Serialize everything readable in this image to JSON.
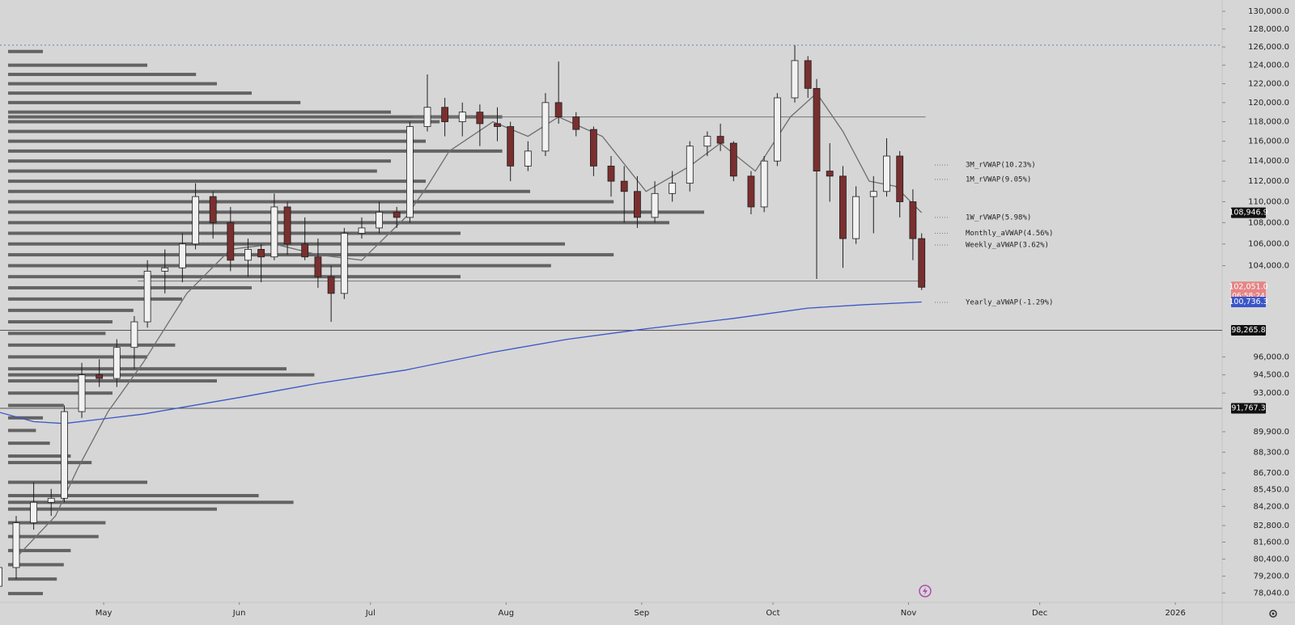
{
  "chart_data": {
    "type": "candlestick",
    "log_scale": true,
    "xlim": [
      97.3,
      376.7
    ],
    "xticks": [
      {
        "value": 121,
        "label": "May"
      },
      {
        "value": 152,
        "label": "Jun"
      },
      {
        "value": 182,
        "label": "Jul"
      },
      {
        "value": 213,
        "label": "Aug"
      },
      {
        "value": 244,
        "label": "Sep"
      },
      {
        "value": 274,
        "label": "Oct"
      },
      {
        "value": 305,
        "label": "Nov"
      },
      {
        "value": 335,
        "label": "Dec"
      },
      {
        "value": 366,
        "label": "2026"
      }
    ],
    "ylim": [
      77400,
      131300
    ],
    "yticks": [
      {
        "value": 130000,
        "label": "130,000.0"
      },
      {
        "value": 128000,
        "label": "128,000.0"
      },
      {
        "value": 126000,
        "label": "126,000.0"
      },
      {
        "value": 124000,
        "label": "124,000.0"
      },
      {
        "value": 122000,
        "label": "122,000.0"
      },
      {
        "value": 120000,
        "label": "120,000.0"
      },
      {
        "value": 118000,
        "label": "118,000.0"
      },
      {
        "value": 116000,
        "label": "116,000.0"
      },
      {
        "value": 114000,
        "label": "114,000.0"
      },
      {
        "value": 112000,
        "label": "112,000.0"
      },
      {
        "value": 110000,
        "label": "110,000.0"
      },
      {
        "value": 108000,
        "label": "108,000.0"
      },
      {
        "value": 106000,
        "label": "106,000.0"
      },
      {
        "value": 104000,
        "label": "104,000.0"
      },
      {
        "value": 96000,
        "label": "96,000.0"
      },
      {
        "value": 94500,
        "label": "94,500.0"
      },
      {
        "value": 93000,
        "label": "93,000.0"
      },
      {
        "value": 89900,
        "label": "89,900.0"
      },
      {
        "value": 88300,
        "label": "88,300.0"
      },
      {
        "value": 86700,
        "label": "86,700.0"
      },
      {
        "value": 85450,
        "label": "85,450.0"
      },
      {
        "value": 84200,
        "label": "84,200.0"
      },
      {
        "value": 82800,
        "label": "82,800.0"
      },
      {
        "value": 81600,
        "label": "81,600.0"
      },
      {
        "value": 80400,
        "label": "80,400.0"
      },
      {
        "value": 79200,
        "label": "79,200.0"
      },
      {
        "value": 78040,
        "label": "78,040.0"
      }
    ],
    "up_color": "#f2f2f2",
    "down_color": "#7a2f2f",
    "x": [
      97,
      101,
      105,
      109,
      112,
      116,
      120,
      124,
      128,
      131,
      135,
      139,
      142,
      146,
      150,
      154,
      157,
      160,
      163,
      167,
      170,
      173,
      176,
      180,
      184,
      188,
      191,
      195,
      199,
      203,
      207,
      211,
      214,
      218,
      222,
      225,
      229,
      233,
      237,
      240,
      243,
      247,
      251,
      255,
      259,
      262,
      265,
      269,
      272,
      275,
      279,
      282,
      284,
      287,
      290,
      293,
      297,
      300,
      303,
      306,
      308
    ],
    "open": [
      78500,
      79800,
      83000,
      84500,
      84800,
      91500,
      94500,
      94200,
      96800,
      99000,
      103500,
      103800,
      106000,
      110500,
      108000,
      104500,
      105500,
      104800,
      109500,
      106000,
      104800,
      103000,
      101500,
      107000,
      107500,
      109000,
      108500,
      117500,
      119500,
      118000,
      119000,
      117800,
      117500,
      113500,
      115000,
      120000,
      118500,
      117200,
      113500,
      112000,
      111000,
      108500,
      110800,
      111800,
      115500,
      116500,
      115800,
      112500,
      109500,
      114000,
      120500,
      124500,
      121500,
      113000,
      112500,
      106500,
      110500,
      111000,
      114500,
      110000,
      106500
    ],
    "high": [
      80000,
      83500,
      86000,
      85500,
      92000,
      95500,
      95800,
      97500,
      99500,
      104500,
      105500,
      107000,
      111800,
      111000,
      109500,
      106500,
      106000,
      110800,
      110000,
      108500,
      106500,
      104000,
      107500,
      108500,
      110000,
      109500,
      118000,
      123000,
      120500,
      120000,
      119800,
      119500,
      118000,
      116000,
      121000,
      124400,
      119000,
      117500,
      114500,
      113500,
      112500,
      112000,
      113000,
      116000,
      117000,
      117800,
      116000,
      113000,
      114500,
      121000,
      126200,
      125000,
      122500,
      115800,
      113500,
      111500,
      112500,
      116300,
      115000,
      111200,
      107000
    ],
    "low": [
      77500,
      79000,
      82500,
      83500,
      84500,
      91000,
      93500,
      93500,
      95000,
      98500,
      101500,
      102500,
      105500,
      106500,
      103500,
      103000,
      102500,
      104500,
      105000,
      104500,
      102000,
      99000,
      101000,
      106500,
      107000,
      107500,
      108000,
      117000,
      116500,
      116500,
      115500,
      116000,
      112000,
      113000,
      114500,
      117800,
      116500,
      112500,
      110500,
      108000,
      107500,
      108000,
      110000,
      111000,
      114500,
      115000,
      112000,
      108800,
      109000,
      113500,
      120000,
      120500,
      102800,
      110000,
      103800,
      106000,
      107000,
      110500,
      108500,
      104500,
      101800
    ],
    "close": [
      79800,
      83000,
      84500,
      84800,
      91500,
      94500,
      94200,
      96800,
      99000,
      103500,
      103800,
      106000,
      110500,
      108000,
      104500,
      105500,
      104800,
      109500,
      106000,
      104800,
      103000,
      101500,
      107000,
      107500,
      109000,
      108500,
      117500,
      119500,
      118000,
      119000,
      117800,
      117500,
      113500,
      115000,
      120000,
      118500,
      117200,
      113500,
      112000,
      111000,
      108500,
      110800,
      111800,
      115500,
      116500,
      115800,
      112500,
      109500,
      114000,
      120500,
      124500,
      121500,
      113000,
      112500,
      106500,
      110500,
      111000,
      114500,
      110000,
      106500,
      102051
    ],
    "overlays": [
      {
        "color": "#6e6e6e",
        "x": [
          101,
          110,
          115,
          122,
          130,
          140,
          150,
          160,
          170,
          180,
          190,
          195,
          200,
          210,
          218,
          225,
          235,
          245,
          255,
          262,
          270,
          278,
          284,
          290,
          296,
          302,
          308
        ],
        "values": [
          80500,
          83500,
          87000,
          91500,
          95500,
          101500,
          105500,
          106000,
          105000,
          104500,
          108500,
          111500,
          115000,
          118000,
          116500,
          118500,
          116500,
          111000,
          113500,
          115800,
          113000,
          118500,
          121000,
          117000,
          112000,
          111500,
          108946.9
        ]
      },
      {
        "color": "#3a56c8",
        "x": [
          97,
          105,
          112,
          130,
          153,
          170,
          190,
          210,
          227,
          245,
          265,
          282,
          295,
          308
        ],
        "values": [
          91460,
          90700,
          90550,
          91300,
          92700,
          93800,
          94900,
          96400,
          97500,
          98400,
          99300,
          100200,
          100500,
          100736.3
        ]
      }
    ],
    "volume_profile": {
      "color": "#3c3c3c",
      "levels": [
        125500,
        124000,
        123000,
        122000,
        121000,
        120000,
        119000,
        118500,
        118000,
        117000,
        116000,
        115000,
        114000,
        113000,
        112000,
        111000,
        110000,
        109000,
        108000,
        107000,
        106000,
        105000,
        104000,
        103000,
        102000,
        101000,
        100000,
        99000,
        98000,
        97000,
        96000,
        95000,
        94500,
        94000,
        93000,
        92000,
        91000,
        90000,
        89000,
        88000,
        87500,
        86000,
        85000,
        84500,
        84000,
        83000,
        82000,
        81000,
        80000,
        79000,
        78000
      ],
      "values": [
        5,
        20,
        27,
        30,
        35,
        42,
        55,
        71,
        62,
        58,
        60,
        71,
        55,
        53,
        60,
        75,
        87,
        100,
        95,
        65,
        80,
        87,
        78,
        65,
        35,
        25,
        18,
        15,
        14,
        24,
        20,
        40,
        44,
        30,
        15,
        8,
        5,
        4,
        6,
        9,
        12,
        20,
        36,
        41,
        30,
        14,
        13,
        9,
        8,
        7,
        5
      ]
    },
    "levels": [
      {
        "value": 126200,
        "from": 97.3,
        "to": 376.7,
        "color": "#6b7fc0",
        "dash": "2 3"
      },
      {
        "value": 118500,
        "from": 191.7,
        "to": 308.9,
        "color": "#777777"
      },
      {
        "value": 102600,
        "from": 128.8,
        "to": 308.9,
        "color": "#777777"
      },
      {
        "value": 98265.8,
        "from": 97.3,
        "to": 376.7,
        "color": "#555555"
      },
      {
        "value": 91767.3,
        "from": 97.3,
        "to": 376.7,
        "color": "#555555"
      }
    ],
    "vwap_labels": [
      {
        "text": "3M_rVWAP(10.23%)",
        "value": 113600,
        "color": "#3f5e5e"
      },
      {
        "text": "1M_rVWAP(9.05%)",
        "value": 112180,
        "color": "#8a3a3a"
      },
      {
        "text": "1W_rVWAP(5.98%)",
        "value": 108500,
        "color": "#333333"
      },
      {
        "text": "Monthly_aVWAP(4.56%)",
        "value": 107000,
        "color": "#2f7a2f"
      },
      {
        "text": "Weekly_aVWAP(3.62%)",
        "value": 105900,
        "color": "#333333"
      },
      {
        "text": "Yearly_aVWAP(-1.29%)",
        "value": 100700,
        "color": "#3a56c8"
      }
    ],
    "price_tags": [
      {
        "value": 108946.9,
        "label": "108,946.9",
        "color": "#111111"
      },
      {
        "value": 102051,
        "label": "102,051.0",
        "color": "#e58585",
        "countdown": "06:58:24"
      },
      {
        "value": 100736.3,
        "label": "100,736.3",
        "color": "#3a56c8"
      },
      {
        "value": 98265.8,
        "label": "98,265.8",
        "color": "#111111"
      },
      {
        "value": 91767.3,
        "label": "91,767.3",
        "color": "#111111"
      }
    ]
  }
}
